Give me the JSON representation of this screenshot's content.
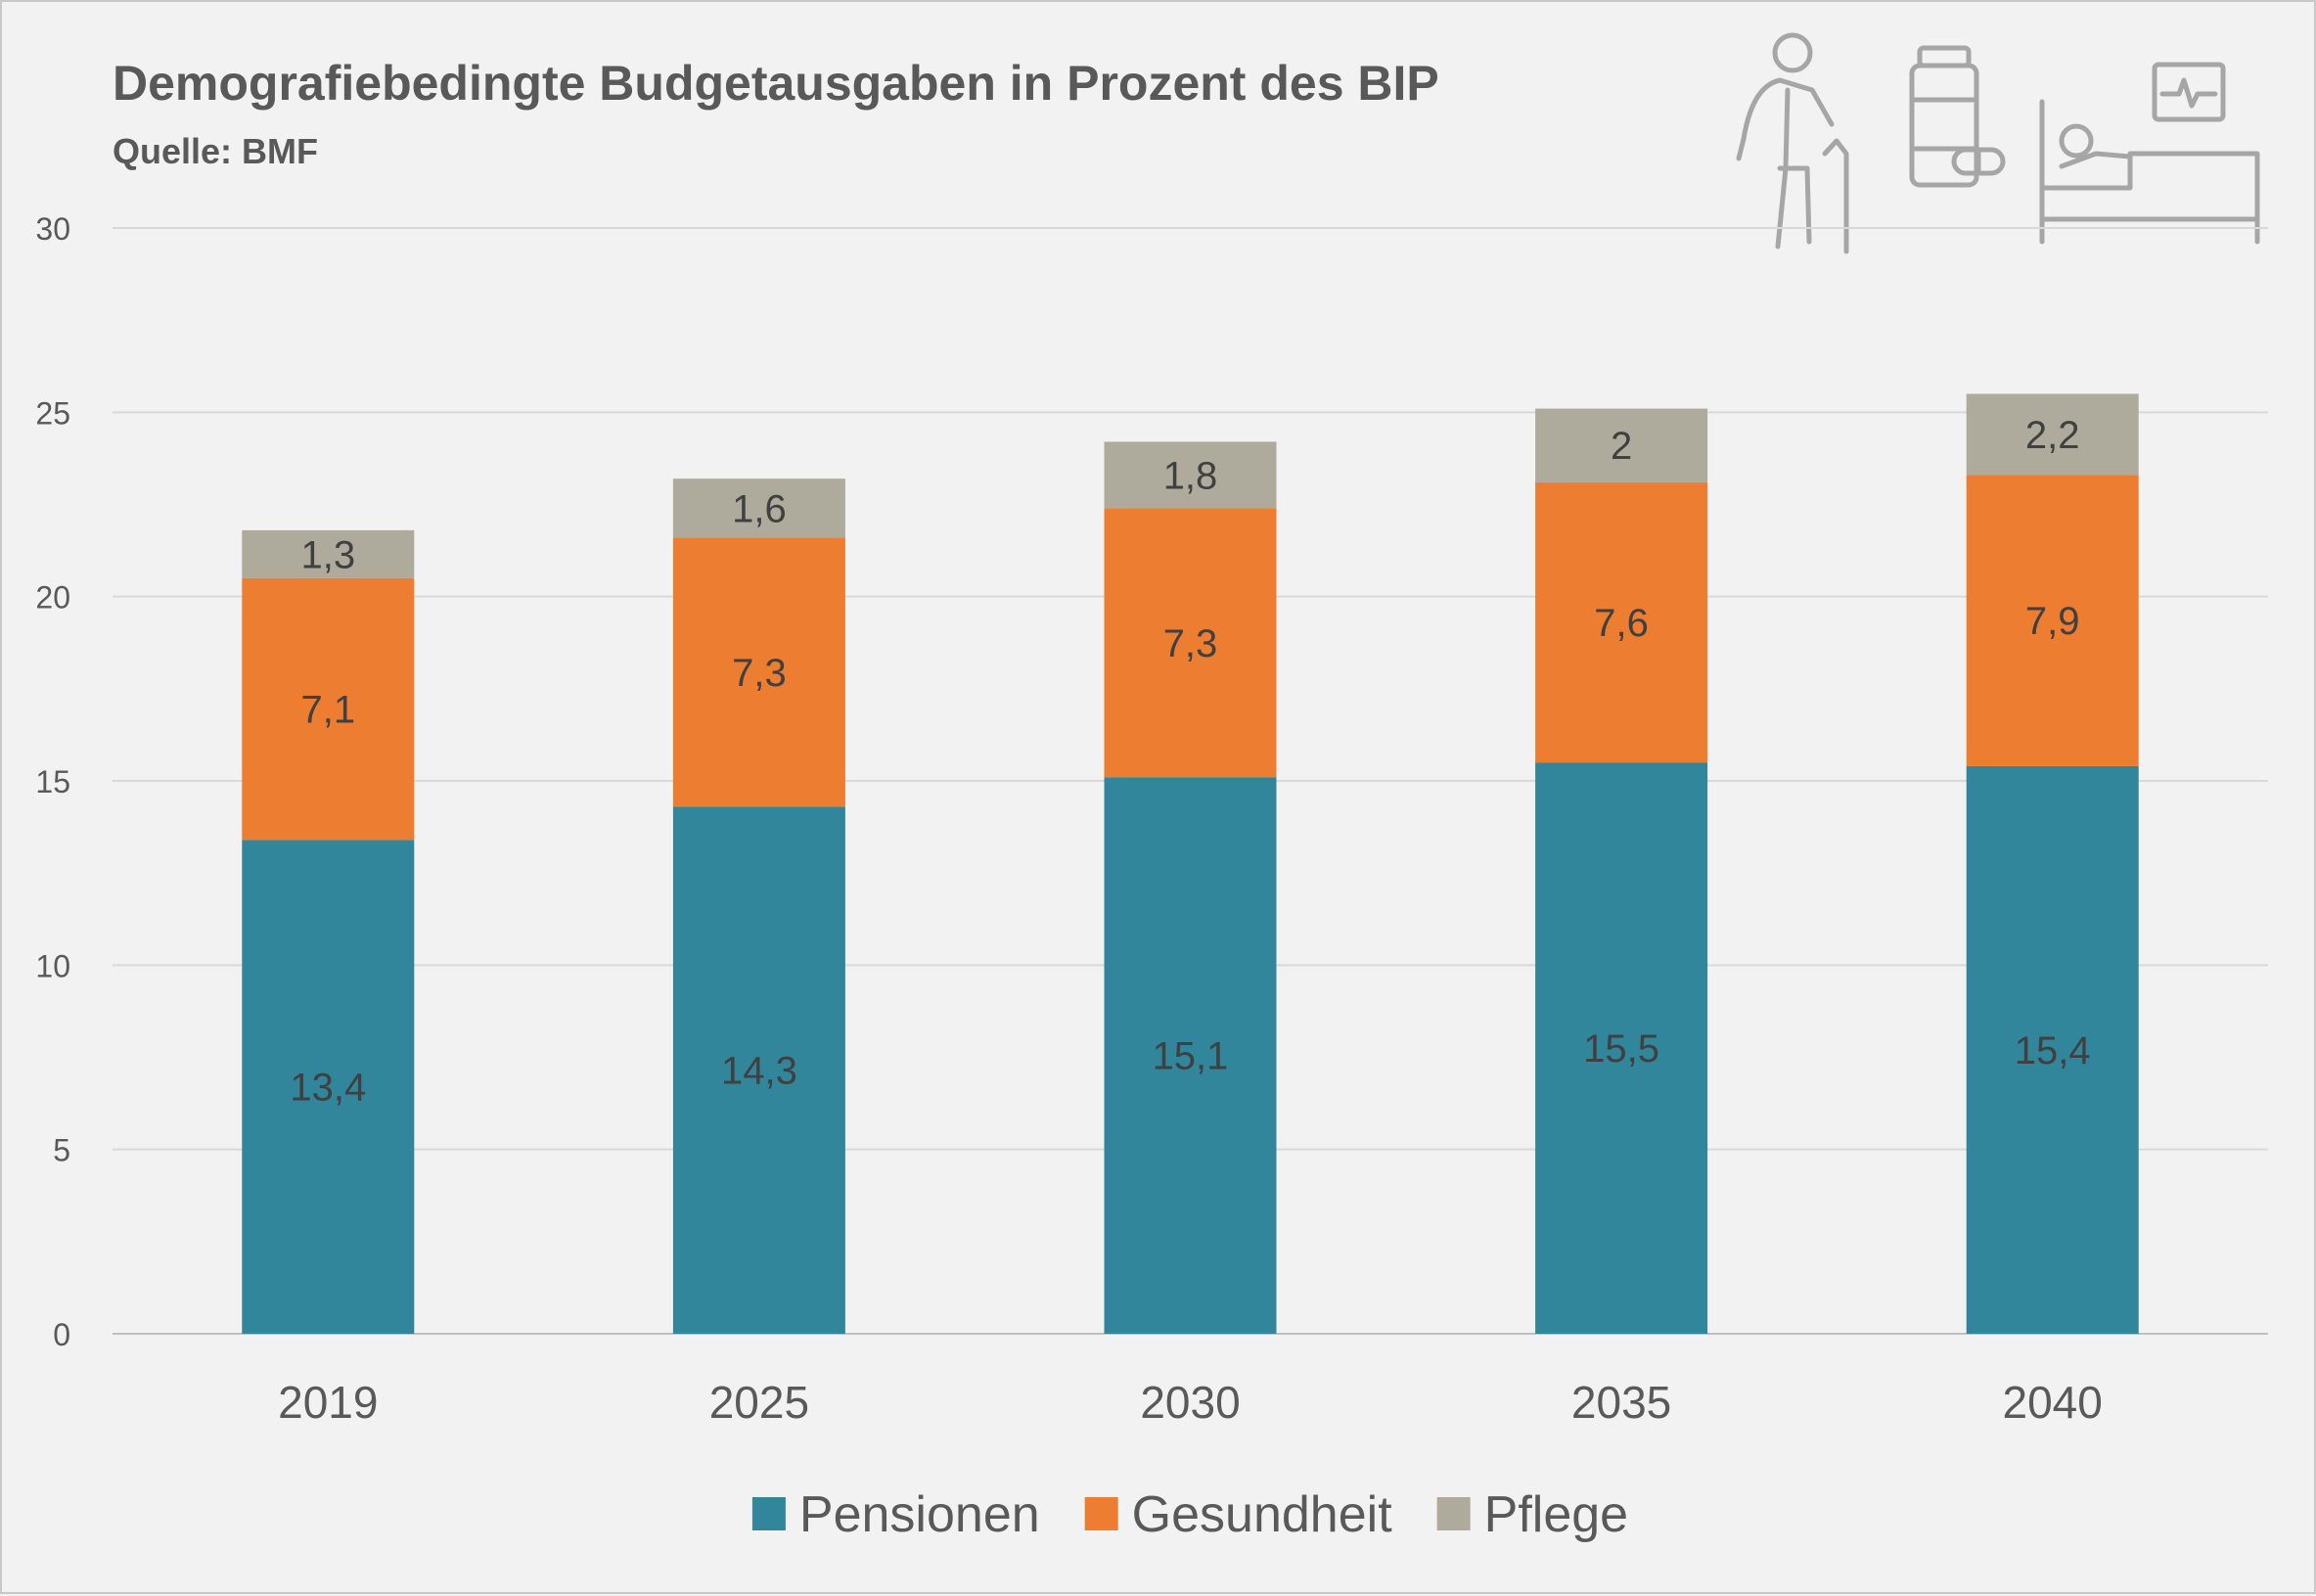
{
  "icons": [
    "elderly-person-with-cane-icon",
    "medicine-bottle-and-pill-icon",
    "hospital-bed-with-heart-monitor-icon"
  ],
  "chart_data": {
    "type": "bar",
    "stacked": true,
    "title": "Demografiebedingte Budgetausgaben in Prozent des BIP",
    "subtitle": "Quelle: BMF",
    "categories": [
      "2019",
      "2025",
      "2030",
      "2035",
      "2040"
    ],
    "series": [
      {
        "name": "Pensionen",
        "values": [
          13.4,
          14.3,
          15.1,
          15.5,
          15.4
        ],
        "labels": [
          "13,4",
          "14,3",
          "15,1",
          "15,5",
          "15,4"
        ],
        "color": "#31869b"
      },
      {
        "name": "Gesundheit",
        "values": [
          7.1,
          7.3,
          7.3,
          7.6,
          7.9
        ],
        "labels": [
          "7,1",
          "7,3",
          "7,3",
          "7,6",
          "7,9"
        ],
        "color": "#ed7d31"
      },
      {
        "name": "Pflege",
        "values": [
          1.3,
          1.6,
          1.8,
          2,
          2.2
        ],
        "labels": [
          "1,3",
          "1,6",
          "1,8",
          "2",
          "2,2"
        ],
        "color": "#aeaa9c"
      }
    ],
    "ylim": [
      0,
      30
    ],
    "yticks": [
      0,
      5,
      10,
      15,
      20,
      25,
      30
    ],
    "ytick_labels": [
      "0",
      "5",
      "10",
      "15",
      "20",
      "25",
      "30"
    ],
    "grid": true,
    "legend": "bottom-center"
  }
}
